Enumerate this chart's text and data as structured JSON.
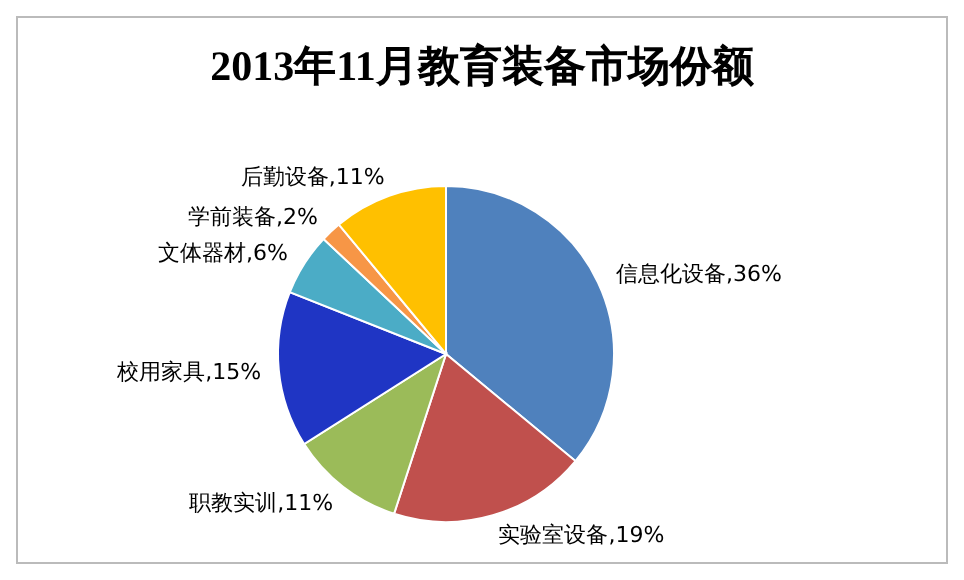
{
  "chart_data": {
    "type": "pie",
    "title": "2013年11月教育装备市场份额",
    "categories": [
      "信息化设备",
      "实验室设备",
      "职教实训",
      "校用家具",
      "文体器材",
      "学前装备",
      "后勤设备"
    ],
    "values": [
      36,
      19,
      11,
      15,
      6,
      2,
      11
    ],
    "colors": [
      "#4f81bd",
      "#c0504d",
      "#9bbb59",
      "#1f35c4",
      "#4bacc6",
      "#f79646",
      "#ffc000"
    ],
    "value_labels": [
      ",36%",
      ",19%",
      ",11%",
      ",15%",
      ",6%",
      ",2%",
      ",11%"
    ]
  }
}
